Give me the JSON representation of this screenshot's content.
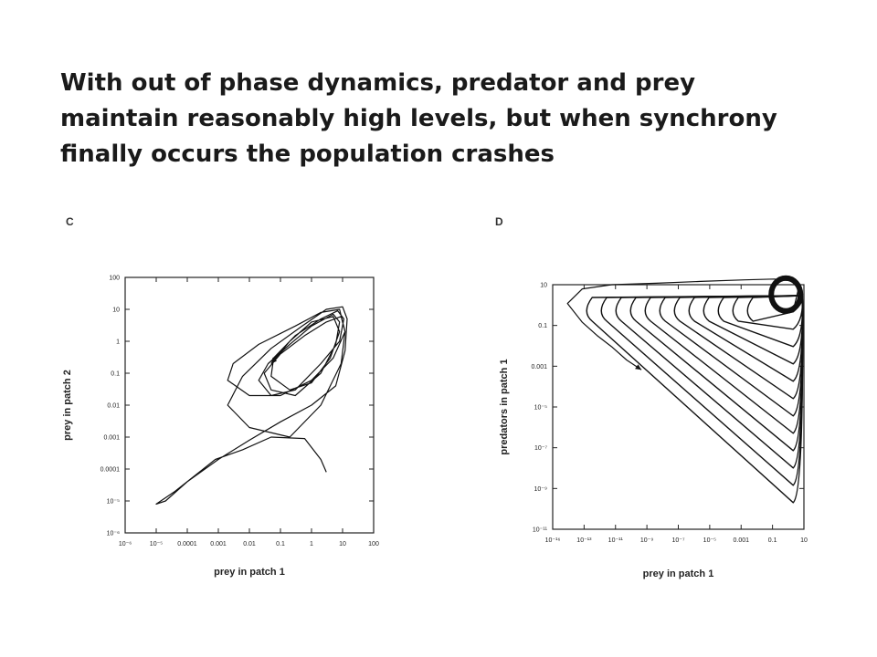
{
  "heading": {
    "line1": "With out of phase dynamics, predator and prey",
    "line2": "maintain reasonably high levels, but when synchrony",
    "line3": "finally occurs the population crashes"
  },
  "colors": {
    "background": "#ffffff",
    "ink": "#111111",
    "text": "#1a1a1a"
  },
  "chart_data": [
    {
      "type": "line",
      "panel": "C",
      "xlabel": "prey in patch 1",
      "ylabel": "prey in patch 2",
      "xscale": "log",
      "yscale": "log",
      "xlim": [
        "1e-6",
        "100"
      ],
      "ylim": [
        "1e-6",
        "100"
      ],
      "xticks": [
        "10⁻⁶",
        "10⁻⁵",
        "0.0001",
        "0.001",
        "0.01",
        "0.1",
        "1",
        "10",
        "100"
      ],
      "yticks": [
        "100",
        "10",
        "1",
        "0.1",
        "0.01",
        "0.001",
        "0.0001",
        "10⁻⁵",
        "10⁻⁶"
      ],
      "grid": false,
      "series": [
        {
          "x": [
            3,
            2,
            0.6,
            0.05,
            0.006,
            0.0008,
            4e-05,
            1e-05,
            2e-05,
            0.0001,
            0.001,
            0.01,
            0.1,
            1,
            6,
            12,
            14,
            10,
            3,
            0.5,
            0.05,
            0.006,
            0.002,
            0.01,
            0.2,
            2,
            9,
            12,
            8,
            2,
            0.3,
            0.02,
            0.003,
            0.002,
            0.01,
            0.1,
            1,
            5,
            12,
            9,
            3,
            0.6,
            0.1,
            0.03,
            0.05,
            0.3,
            2,
            6,
            8,
            5,
            1,
            0.2,
            0.04,
            0.02,
            0.05,
            0.3,
            2,
            8,
            11,
            7,
            2,
            0.3,
            0.06,
            0.05,
            0.2,
            1,
            4,
            8,
            5,
            1,
            0.2,
            0.05
          ],
          "y": [
            8e-05,
            0.0002,
            0.0009,
            0.001,
            0.0004,
            0.0002,
            2e-05,
            8e-06,
            1e-05,
            4e-05,
            0.0002,
            0.0008,
            0.003,
            0.01,
            0.04,
            0.5,
            5,
            12,
            10,
            3,
            0.6,
            0.08,
            0.01,
            0.002,
            0.001,
            0.01,
            0.2,
            2,
            10,
            8,
            3,
            0.8,
            0.2,
            0.06,
            0.02,
            0.02,
            0.06,
            0.3,
            2,
            6,
            4,
            1.5,
            0.4,
            0.1,
            0.03,
            0.02,
            0.1,
            0.8,
            4,
            7,
            3,
            0.8,
            0.2,
            0.06,
            0.02,
            0.03,
            0.2,
            1,
            5,
            9,
            5,
            1.5,
            0.3,
            0.08,
            0.03,
            0.05,
            0.3,
            2,
            6,
            4,
            1,
            0.2
          ]
        }
      ]
    },
    {
      "type": "line",
      "panel": "D",
      "xlabel": "prey in patch 1",
      "ylabel": "predators in patch 1",
      "xscale": "log",
      "yscale": "log",
      "xlim": [
        "1e-16",
        "10"
      ],
      "ylim": [
        "1e-12",
        "10"
      ],
      "xticks": [
        "10⁻¹⁶",
        "10⁻¹³",
        "10⁻¹¹",
        "10⁻⁹",
        "10⁻⁷",
        "10⁻⁵",
        "0.001",
        "0.1",
        "10"
      ],
      "yticks": [
        "10",
        "0.1",
        "0.001",
        "10⁻⁵",
        "10⁻⁷",
        "10⁻⁹",
        "10⁻¹¹"
      ],
      "grid": false,
      "series": [
        {
          "x": [
            2,
            4,
            3,
            0.1,
            0.001,
            1e-06,
            1e-09,
            1e-12,
            1e-14,
            1e-15,
            1e-14,
            1e-13,
            1e-12,
            1e-11,
            1e-10
          ],
          "y": [
            0.5,
            5,
            15,
            20,
            18,
            15,
            12,
            10,
            6,
            1,
            0.1,
            0.02,
            0.005,
            0.001,
            0.0003
          ]
        }
      ]
    }
  ]
}
